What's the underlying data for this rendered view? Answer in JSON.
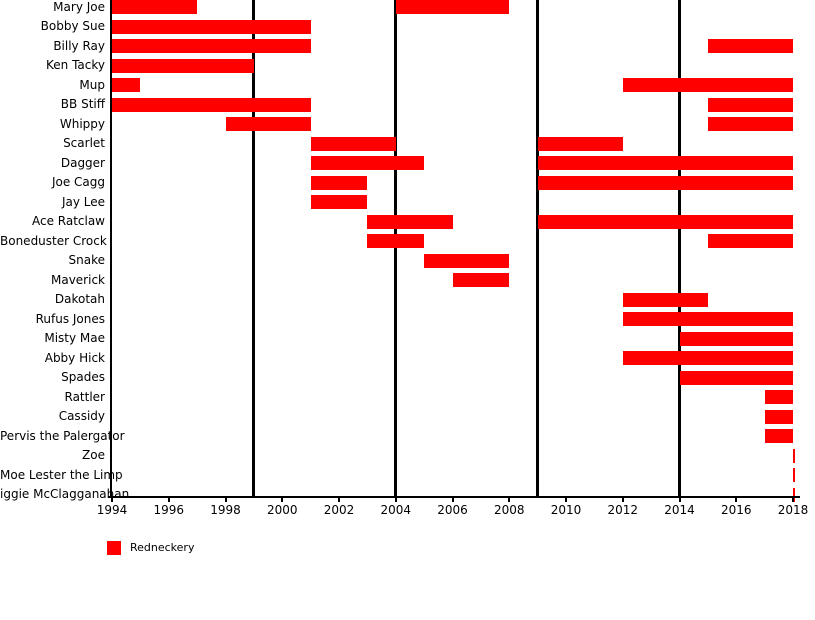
{
  "chart_data": {
    "type": "bar",
    "subtype": "gantt-timeline",
    "title": "",
    "xlabel": "",
    "ylabel": "",
    "xlim": [
      1994,
      2018
    ],
    "x_ticks": [
      1994,
      1996,
      1998,
      2000,
      2002,
      2004,
      2006,
      2008,
      2010,
      2012,
      2014,
      2016,
      2018
    ],
    "guide_lines": [
      1999,
      2004,
      2009,
      2014
    ],
    "grid": false,
    "legend_position": "bottom-left",
    "legend": [
      {
        "label": "Redneckery",
        "color": "#ff0000"
      }
    ],
    "rows": [
      {
        "name": "Mary Joe",
        "segments": [
          [
            1994,
            1997
          ],
          [
            2004,
            2008
          ]
        ]
      },
      {
        "name": "Bobby Sue",
        "segments": [
          [
            1994,
            2001
          ]
        ]
      },
      {
        "name": "Billy Ray",
        "segments": [
          [
            1994,
            2001
          ],
          [
            2015,
            2018
          ]
        ]
      },
      {
        "name": "Ken Tacky",
        "segments": [
          [
            1994,
            1999
          ]
        ]
      },
      {
        "name": "Mup",
        "segments": [
          [
            1994,
            1995
          ],
          [
            2012,
            2018
          ]
        ]
      },
      {
        "name": "BB Stiff",
        "segments": [
          [
            1994,
            2001
          ],
          [
            2015,
            2018
          ]
        ]
      },
      {
        "name": "Whippy",
        "segments": [
          [
            1998,
            2001
          ],
          [
            2015,
            2018
          ]
        ]
      },
      {
        "name": "Scarlet",
        "segments": [
          [
            2001,
            2004
          ],
          [
            2009,
            2012
          ]
        ]
      },
      {
        "name": "Dagger",
        "segments": [
          [
            2001,
            2005
          ],
          [
            2009,
            2018
          ]
        ]
      },
      {
        "name": "Joe Cagg",
        "segments": [
          [
            2001,
            2003
          ],
          [
            2009,
            2018
          ]
        ]
      },
      {
        "name": "Jay Lee",
        "segments": [
          [
            2001,
            2003
          ]
        ]
      },
      {
        "name": "Ace Ratclaw",
        "segments": [
          [
            2003,
            2006
          ],
          [
            2009,
            2018
          ]
        ]
      },
      {
        "name": "Boneduster Crock",
        "segments": [
          [
            2003,
            2005
          ],
          [
            2015,
            2018
          ]
        ]
      },
      {
        "name": "Snake",
        "segments": [
          [
            2005,
            2008
          ]
        ]
      },
      {
        "name": "Maverick",
        "segments": [
          [
            2006,
            2008
          ]
        ]
      },
      {
        "name": "Dakotah",
        "segments": [
          [
            2012,
            2015
          ]
        ]
      },
      {
        "name": "Rufus Jones",
        "segments": [
          [
            2012,
            2018
          ]
        ]
      },
      {
        "name": "Misty Mae",
        "segments": [
          [
            2014,
            2018
          ]
        ]
      },
      {
        "name": "Abby Hick",
        "segments": [
          [
            2012,
            2018
          ]
        ]
      },
      {
        "name": "Spades",
        "segments": [
          [
            2014,
            2018
          ]
        ]
      },
      {
        "name": "Rattler",
        "segments": [
          [
            2017,
            2018
          ]
        ]
      },
      {
        "name": "Cassidy",
        "segments": [
          [
            2017,
            2018
          ]
        ]
      },
      {
        "name": "Pervis the Palergator",
        "segments": [
          [
            2017,
            2018
          ]
        ]
      },
      {
        "name": "Zoe",
        "segments": [
          [
            2018,
            2018
          ]
        ]
      },
      {
        "name": "Moe Lester the Limp",
        "segments": [
          [
            2018,
            2018
          ]
        ]
      },
      {
        "name": "iggie McClagganahan",
        "segments": [
          [
            2018,
            2018
          ]
        ]
      }
    ]
  },
  "colors": {
    "bar": "#ff0000",
    "axis": "#000000",
    "guide_line": "#000000",
    "text": "#000000",
    "background": "#ffffff"
  }
}
